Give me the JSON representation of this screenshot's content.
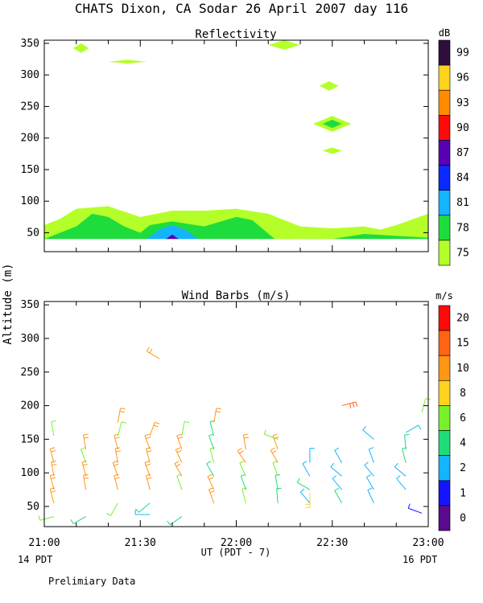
{
  "title": "CHATS Dixon, CA  Sodar  26 April 2007  day 116",
  "footer": {
    "left_date": "14 PDT",
    "right_date": "16 PDT",
    "note": "Prelimiary Data",
    "xlabel": "UT  (PDT - 7)"
  },
  "ylabel": "Altitude (m)",
  "x_ticks": [
    "21:00",
    "21:30",
    "22:00",
    "22:30",
    "23:00"
  ],
  "chart_data": [
    {
      "type": "contour",
      "title": "Reflectivity",
      "colorbar_unit": "dB",
      "colorbar_levels": [
        "99",
        "96",
        "93",
        "90",
        "87",
        "84",
        "81",
        "78",
        "75"
      ],
      "colorbar_colors": [
        "#2e0f3c",
        "#ffd21e",
        "#ff8c00",
        "#ff0a0a",
        "#5a00b4",
        "#0a28ff",
        "#14b4ff",
        "#1edc3c",
        "#b4ff2a"
      ],
      "x_range_minutes": [
        0,
        120
      ],
      "ylim": [
        20,
        355
      ],
      "yticks": [
        50,
        100,
        150,
        200,
        250,
        300,
        350
      ],
      "layers": [
        {
          "level": "75",
          "color": "#b4ff2a",
          "top_x": [
            0,
            5,
            10,
            20,
            30,
            40,
            50,
            60,
            70,
            80,
            90,
            100,
            105,
            110,
            120
          ],
          "top_y": [
            62,
            72,
            88,
            92,
            75,
            85,
            85,
            88,
            80,
            60,
            57,
            60,
            55,
            62,
            80
          ]
        },
        {
          "level": "78",
          "color": "#1edc3c",
          "top_x": [
            0,
            10,
            15,
            20,
            25,
            30,
            33,
            40,
            50,
            60,
            65,
            72,
            90,
            100,
            110,
            120
          ],
          "top_y": [
            40,
            60,
            80,
            75,
            60,
            50,
            62,
            68,
            60,
            75,
            70,
            40,
            40,
            48,
            45,
            42
          ]
        },
        {
          "level": "81",
          "color": "#14b4ff",
          "top_x": [
            32,
            36,
            40,
            44,
            48
          ],
          "top_y": [
            40,
            55,
            62,
            55,
            40
          ]
        },
        {
          "level": "87",
          "color": "#5a00b4",
          "top_x": [
            38,
            40,
            42
          ],
          "top_y": [
            40,
            47,
            40
          ]
        }
      ],
      "patches": [
        {
          "level": "75",
          "x": [
            9,
            14
          ],
          "y": [
            335,
            350
          ]
        },
        {
          "level": "75",
          "x": [
            20,
            32
          ],
          "y": [
            318,
            324
          ]
        },
        {
          "level": "75",
          "x": [
            70,
            80
          ],
          "y": [
            340,
            355
          ]
        },
        {
          "level": "75",
          "x": [
            86,
            92
          ],
          "y": [
            275,
            290
          ]
        },
        {
          "level": "75",
          "x": [
            84,
            96
          ],
          "y": [
            210,
            235
          ]
        },
        {
          "level": "78",
          "x": [
            87,
            93
          ],
          "y": [
            216,
            229
          ]
        },
        {
          "level": "75",
          "x": [
            87,
            93
          ],
          "y": [
            175,
            185
          ]
        }
      ]
    },
    {
      "type": "wind_barbs",
      "title": "Wind Barbs (m/s)",
      "colorbar_unit": "m/s",
      "colorbar_levels": [
        "20",
        "15",
        "10",
        "8",
        "6",
        "4",
        "2",
        "1",
        "0"
      ],
      "colorbar_colors": [
        "#ff0a0a",
        "#ff6414",
        "#ff9614",
        "#ffd21e",
        "#78f02a",
        "#1edc78",
        "#14b4ff",
        "#1414ff",
        "#5a0a8c"
      ],
      "x_range_minutes": [
        0,
        120
      ],
      "ylim": [
        20,
        355
      ],
      "yticks": [
        50,
        100,
        150,
        200,
        250,
        300,
        350
      ],
      "barbs": [
        {
          "t": 3,
          "z": 35,
          "speed": 6,
          "dir": 255
        },
        {
          "t": 3,
          "z": 55,
          "speed": 10,
          "dir": 345
        },
        {
          "t": 3,
          "z": 75,
          "speed": 10,
          "dir": 345
        },
        {
          "t": 3,
          "z": 95,
          "speed": 10,
          "dir": 350
        },
        {
          "t": 3,
          "z": 115,
          "speed": 10,
          "dir": 345
        },
        {
          "t": 3,
          "z": 155,
          "speed": 6,
          "dir": 350
        },
        {
          "t": 13,
          "z": 35,
          "speed": 4,
          "dir": 240
        },
        {
          "t": 13,
          "z": 75,
          "speed": 10,
          "dir": 350
        },
        {
          "t": 13,
          "z": 95,
          "speed": 10,
          "dir": 345
        },
        {
          "t": 13,
          "z": 115,
          "speed": 6,
          "dir": 340
        },
        {
          "t": 13,
          "z": 135,
          "speed": 10,
          "dir": 350
        },
        {
          "t": 23,
          "z": 55,
          "speed": 6,
          "dir": 210
        },
        {
          "t": 23,
          "z": 75,
          "speed": 10,
          "dir": 345
        },
        {
          "t": 23,
          "z": 95,
          "speed": 10,
          "dir": 340
        },
        {
          "t": 23,
          "z": 115,
          "speed": 10,
          "dir": 350
        },
        {
          "t": 23,
          "z": 135,
          "speed": 10,
          "dir": 345
        },
        {
          "t": 23,
          "z": 155,
          "speed": 6,
          "dir": 15
        },
        {
          "t": 23,
          "z": 175,
          "speed": 10,
          "dir": 10
        },
        {
          "t": 33,
          "z": 38,
          "speed": 2,
          "dir": 270
        },
        {
          "t": 33,
          "z": 55,
          "speed": 4,
          "dir": 230
        },
        {
          "t": 33,
          "z": 75,
          "speed": 10,
          "dir": 345
        },
        {
          "t": 33,
          "z": 95,
          "speed": 10,
          "dir": 340
        },
        {
          "t": 33,
          "z": 115,
          "speed": 10,
          "dir": 345
        },
        {
          "t": 33,
          "z": 135,
          "speed": 10,
          "dir": 340
        },
        {
          "t": 33,
          "z": 155,
          "speed": 10,
          "dir": 20
        },
        {
          "t": 43,
          "z": 35,
          "speed": 4,
          "dir": 235
        },
        {
          "t": 43,
          "z": 75,
          "speed": 6,
          "dir": 340
        },
        {
          "t": 43,
          "z": 95,
          "speed": 10,
          "dir": 330
        },
        {
          "t": 43,
          "z": 115,
          "speed": 10,
          "dir": 335
        },
        {
          "t": 43,
          "z": 135,
          "speed": 10,
          "dir": 340
        },
        {
          "t": 43,
          "z": 155,
          "speed": 6,
          "dir": 10
        },
        {
          "t": 53,
          "z": 55,
          "speed": 10,
          "dir": 340
        },
        {
          "t": 53,
          "z": 75,
          "speed": 10,
          "dir": 335
        },
        {
          "t": 53,
          "z": 95,
          "speed": 4,
          "dir": 330
        },
        {
          "t": 53,
          "z": 115,
          "speed": 6,
          "dir": 345
        },
        {
          "t": 53,
          "z": 135,
          "speed": 4,
          "dir": 340
        },
        {
          "t": 53,
          "z": 155,
          "speed": 4,
          "dir": 345
        },
        {
          "t": 53,
          "z": 175,
          "speed": 10,
          "dir": 10
        },
        {
          "t": 63,
          "z": 55,
          "speed": 6,
          "dir": 345
        },
        {
          "t": 63,
          "z": 75,
          "speed": 4,
          "dir": 340
        },
        {
          "t": 63,
          "z": 95,
          "speed": 6,
          "dir": 335
        },
        {
          "t": 63,
          "z": 115,
          "speed": 10,
          "dir": 325
        },
        {
          "t": 63,
          "z": 135,
          "speed": 10,
          "dir": 350
        },
        {
          "t": 73,
          "z": 55,
          "speed": 4,
          "dir": 355
        },
        {
          "t": 73,
          "z": 75,
          "speed": 4,
          "dir": 350
        },
        {
          "t": 73,
          "z": 95,
          "speed": 6,
          "dir": 340
        },
        {
          "t": 73,
          "z": 115,
          "speed": 10,
          "dir": 330
        },
        {
          "t": 73,
          "z": 135,
          "speed": 10,
          "dir": 340
        },
        {
          "t": 73,
          "z": 150,
          "speed": 6,
          "dir": 290
        },
        {
          "t": 83,
          "z": 55,
          "speed": 2,
          "dir": 320
        },
        {
          "t": 83,
          "z": 75,
          "speed": 4,
          "dir": 300
        },
        {
          "t": 83,
          "z": 95,
          "speed": 2,
          "dir": 330
        },
        {
          "t": 83,
          "z": 115,
          "speed": 2,
          "dir": 360
        },
        {
          "t": 83,
          "z": 70,
          "speed": 8,
          "dir": 180
        },
        {
          "t": 93,
          "z": 55,
          "speed": 4,
          "dir": 330
        },
        {
          "t": 93,
          "z": 75,
          "speed": 2,
          "dir": 320
        },
        {
          "t": 93,
          "z": 95,
          "speed": 2,
          "dir": 310
        },
        {
          "t": 93,
          "z": 115,
          "speed": 2,
          "dir": 330
        },
        {
          "t": 93,
          "z": 200,
          "speed": 15,
          "dir": 75
        },
        {
          "t": 103,
          "z": 55,
          "speed": 2,
          "dir": 335
        },
        {
          "t": 103,
          "z": 75,
          "speed": 2,
          "dir": 330
        },
        {
          "t": 103,
          "z": 95,
          "speed": 2,
          "dir": 320
        },
        {
          "t": 103,
          "z": 115,
          "speed": 2,
          "dir": 340
        },
        {
          "t": 103,
          "z": 150,
          "speed": 2,
          "dir": 310
        },
        {
          "t": 113,
          "z": 75,
          "speed": 2,
          "dir": 320
        },
        {
          "t": 113,
          "z": 95,
          "speed": 2,
          "dir": 310
        },
        {
          "t": 113,
          "z": 115,
          "speed": 4,
          "dir": 345
        },
        {
          "t": 113,
          "z": 135,
          "speed": 4,
          "dir": 355
        },
        {
          "t": 113,
          "z": 160,
          "speed": 2,
          "dir": 60
        },
        {
          "t": 118,
          "z": 190,
          "speed": 6,
          "dir": 15
        },
        {
          "t": 36,
          "z": 270,
          "speed": 10,
          "dir": 300
        },
        {
          "t": 118,
          "z": 40,
          "speed": 1,
          "dir": 290
        }
      ]
    }
  ]
}
